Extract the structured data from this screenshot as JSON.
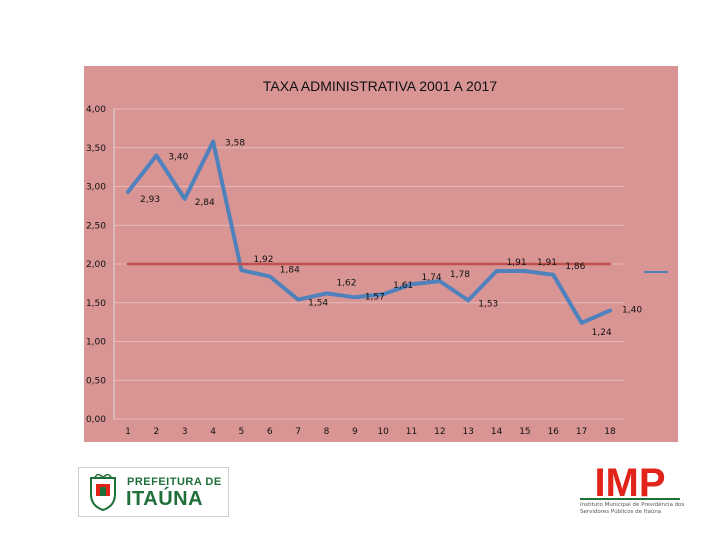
{
  "chart_data": {
    "type": "line",
    "title": "TAXA ADMINISTRATIVA  2001 A 2017",
    "categories": [
      "1",
      "2",
      "3",
      "4",
      "5",
      "6",
      "7",
      "8",
      "9",
      "10",
      "11",
      "12",
      "13",
      "14",
      "15",
      "16",
      "17",
      "18"
    ],
    "y_tick_labels": [
      "4,00",
      "3,50",
      "3,00",
      "2,50",
      "2,00",
      "1,50",
      "1,00",
      "0,50",
      "0,00"
    ],
    "ylim": [
      0,
      4
    ],
    "grid": true,
    "legend": "right",
    "series": [
      {
        "color": "#4f81bd",
        "x": [
          1,
          2,
          3,
          4,
          5,
          6,
          7,
          8,
          9,
          10,
          11,
          12,
          13,
          14,
          15,
          16,
          17,
          18
        ],
        "values": [
          2.93,
          3.4,
          2.84,
          3.58,
          1.92,
          1.84,
          1.54,
          1.62,
          1.57,
          1.61,
          1.74,
          1.78,
          1.53,
          1.91,
          1.91,
          1.86,
          1.24,
          1.4
        ],
        "labels": [
          "2,93",
          "3,40",
          "2,84",
          "3,58",
          "1,92",
          "1,84",
          "1,54",
          "1,62",
          "1,57",
          "1,61",
          "1,74",
          "1,78",
          "1,53",
          "1,91",
          "1,91",
          "1,86",
          "1,24",
          "1,40"
        ]
      },
      {
        "color": "#c0504d",
        "x": [
          1,
          18
        ],
        "values": [
          2.0,
          2.0
        ]
      }
    ]
  },
  "logos": {
    "left": {
      "line1": "PREFEITURA DE",
      "line2": "ITAÚNA"
    },
    "right": {
      "mark": "IMP",
      "subtitle": "Instituto Municipal de Previdência dos Servidores Públicos de Itaúna"
    }
  },
  "colors": {
    "plot_background": "#d99594",
    "line": "#4f81bd",
    "reference_line": "#c0504d",
    "logo_green": "#1f6f3a",
    "logo_red": "#e2231a"
  }
}
